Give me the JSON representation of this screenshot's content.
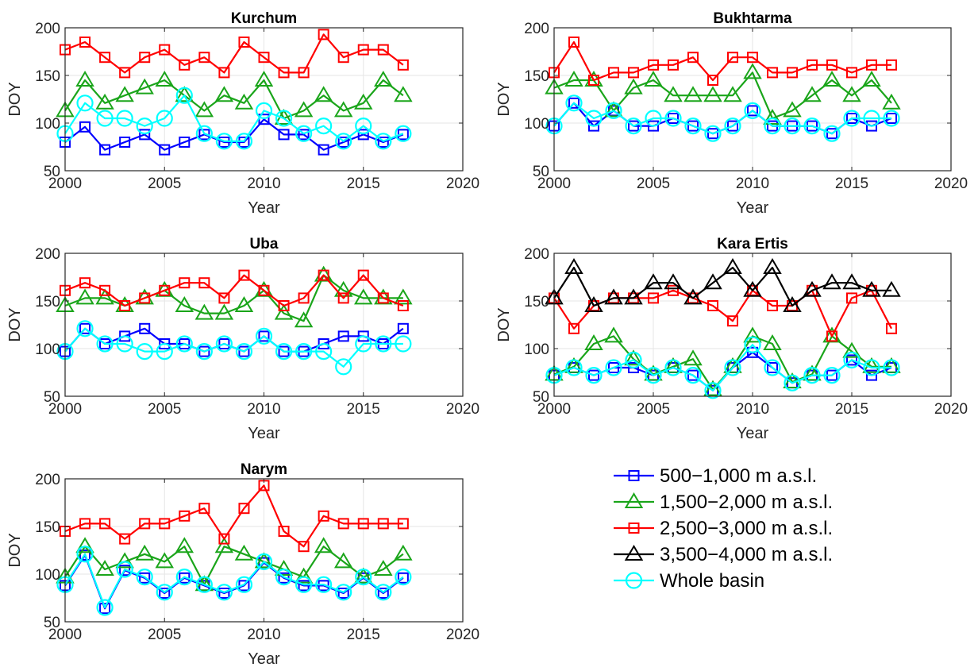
{
  "legend": [
    {
      "label": "500−1,000 m a.s.l.",
      "color": "#0000ff",
      "marker": "square"
    },
    {
      "label": "1,500−2,000 m a.s.l.",
      "color": "#1aa51a",
      "marker": "triangle"
    },
    {
      "label": "2,500−3,000 m a.s.l.",
      "color": "#ff0000",
      "marker": "square"
    },
    {
      "label": "3,500−4,000 m a.s.l.",
      "color": "#000000",
      "marker": "triangle"
    },
    {
      "label": "Whole basin",
      "color": "#00ffff",
      "marker": "circle"
    }
  ],
  "chart_data": [
    {
      "type": "line",
      "title": "Kurchum",
      "xlabel": "Year",
      "ylabel": "DOY",
      "xlim": [
        2000,
        2020
      ],
      "ylim": [
        50,
        200
      ],
      "xticks": [
        2000,
        2005,
        2010,
        2015,
        2020
      ],
      "yticks": [
        50,
        100,
        150,
        200
      ],
      "grid": true,
      "x": [
        2000,
        2001,
        2002,
        2003,
        2004,
        2005,
        2006,
        2007,
        2008,
        2009,
        2010,
        2011,
        2012,
        2013,
        2014,
        2015,
        2016,
        2017
      ],
      "series": [
        {
          "name": "500−1,000 m a.s.l.",
          "values": [
            80,
            96,
            72,
            80,
            88,
            72,
            80,
            88,
            80,
            80,
            104,
            88,
            88,
            72,
            80,
            88,
            80,
            88
          ]
        },
        {
          "name": "1,500−2,000 m a.s.l.",
          "values": [
            113,
            145,
            121,
            129,
            137,
            145,
            129,
            113,
            129,
            121,
            145,
            105,
            113,
            129,
            113,
            121,
            145,
            129
          ]
        },
        {
          "name": "2,500−3,000 m a.s.l.",
          "values": [
            177,
            185,
            169,
            153,
            169,
            177,
            161,
            169,
            153,
            185,
            169,
            153,
            153,
            193,
            169,
            177,
            177,
            161
          ]
        },
        {
          "name": "Whole basin",
          "values": [
            89,
            121,
            105,
            105,
            97,
            105,
            129,
            89,
            81,
            81,
            113,
            105,
            89,
            97,
            81,
            97,
            81,
            89
          ]
        }
      ]
    },
    {
      "type": "line",
      "title": "Bukhtarma",
      "xlabel": "Year",
      "ylabel": "DOY",
      "xlim": [
        2000,
        2020
      ],
      "ylim": [
        50,
        200
      ],
      "xticks": [
        2000,
        2005,
        2010,
        2015,
        2020
      ],
      "yticks": [
        50,
        100,
        150,
        200
      ],
      "grid": true,
      "x": [
        2000,
        2001,
        2002,
        2003,
        2004,
        2005,
        2006,
        2007,
        2008,
        2009,
        2010,
        2011,
        2012,
        2013,
        2014,
        2015,
        2016,
        2017
      ],
      "series": [
        {
          "name": "500−1,000 m a.s.l.",
          "values": [
            97,
            121,
            97,
            113,
            97,
            97,
            105,
            97,
            89,
            97,
            113,
            97,
            97,
            97,
            89,
            105,
            97,
            105
          ]
        },
        {
          "name": "1,500−2,000 m a.s.l.",
          "values": [
            137,
            145,
            145,
            113,
            137,
            145,
            129,
            129,
            129,
            129,
            153,
            105,
            113,
            129,
            145,
            129,
            145,
            121
          ]
        },
        {
          "name": "2,500−3,000 m a.s.l.",
          "values": [
            153,
            185,
            145,
            153,
            153,
            161,
            161,
            169,
            145,
            169,
            169,
            153,
            153,
            161,
            161,
            153,
            161,
            161
          ]
        },
        {
          "name": "Whole basin",
          "values": [
            97,
            121,
            105,
            113,
            97,
            105,
            105,
            97,
            89,
            97,
            113,
            97,
            97,
            97,
            89,
            105,
            105,
            105
          ]
        }
      ]
    },
    {
      "type": "line",
      "title": "Uba",
      "xlabel": "Year",
      "ylabel": "DOY",
      "xlim": [
        2000,
        2020
      ],
      "ylim": [
        50,
        200
      ],
      "xticks": [
        2000,
        2005,
        2010,
        2015,
        2020
      ],
      "yticks": [
        50,
        100,
        150,
        200
      ],
      "grid": true,
      "x": [
        2000,
        2001,
        2002,
        2003,
        2004,
        2005,
        2006,
        2007,
        2008,
        2009,
        2010,
        2011,
        2012,
        2013,
        2014,
        2015,
        2016,
        2017
      ],
      "series": [
        {
          "name": "500−1,000 m a.s.l.",
          "values": [
            97,
            121,
            105,
            113,
            121,
            105,
            105,
            97,
            105,
            97,
            113,
            97,
            97,
            105,
            113,
            113,
            105,
            121
          ]
        },
        {
          "name": "1,500−2,000 m a.s.l.",
          "values": [
            145,
            153,
            153,
            145,
            153,
            161,
            145,
            137,
            137,
            145,
            161,
            137,
            129,
            177,
            161,
            153,
            153,
            153
          ]
        },
        {
          "name": "2,500−3,000 m a.s.l.",
          "values": [
            161,
            169,
            161,
            145,
            153,
            161,
            169,
            169,
            153,
            177,
            161,
            145,
            153,
            177,
            153,
            177,
            153,
            145
          ]
        },
        {
          "name": "Whole basin",
          "values": [
            97,
            121,
            105,
            105,
            97,
            97,
            105,
            97,
            105,
            97,
            113,
            97,
            97,
            97,
            81,
            105,
            105,
            105
          ]
        }
      ]
    },
    {
      "type": "line",
      "title": "Kara Ertis",
      "xlabel": "Year",
      "ylabel": "DOY",
      "xlim": [
        2000,
        2020
      ],
      "ylim": [
        50,
        200
      ],
      "xticks": [
        2000,
        2005,
        2010,
        2015,
        2020
      ],
      "yticks": [
        50,
        100,
        150,
        200
      ],
      "grid": true,
      "x": [
        2000,
        2001,
        2002,
        2003,
        2004,
        2005,
        2006,
        2007,
        2008,
        2009,
        2010,
        2011,
        2012,
        2013,
        2014,
        2015,
        2016,
        2017
      ],
      "series": [
        {
          "name": "500−1,000 m a.s.l.",
          "values": [
            72,
            80,
            72,
            80,
            80,
            72,
            80,
            72,
            56,
            80,
            96,
            80,
            64,
            72,
            72,
            88,
            72,
            80
          ]
        },
        {
          "name": "1,500−2,000 m a.s.l.",
          "values": [
            73,
            81,
            105,
            113,
            89,
            73,
            81,
            89,
            57,
            81,
            113,
            105,
            65,
            73,
            113,
            97,
            81,
            81
          ]
        },
        {
          "name": "2,500−3,000 m a.s.l.",
          "values": [
            153,
            121,
            145,
            153,
            153,
            153,
            161,
            153,
            145,
            129,
            161,
            145,
            145,
            161,
            113,
            153,
            161,
            121
          ]
        },
        {
          "name": "3,500−4,000 m a.s.l.",
          "values": [
            153,
            185,
            145,
            153,
            153,
            169,
            169,
            153,
            169,
            185,
            161,
            185,
            145,
            161,
            169,
            169,
            161,
            161
          ]
        },
        {
          "name": "Whole basin",
          "values": [
            72,
            80,
            72,
            80,
            88,
            72,
            80,
            72,
            56,
            80,
            104,
            80,
            64,
            72,
            72,
            88,
            80,
            80
          ]
        }
      ]
    },
    {
      "type": "line",
      "title": "Narym",
      "xlabel": "Year",
      "ylabel": "DOY",
      "xlim": [
        2000,
        2020
      ],
      "ylim": [
        50,
        200
      ],
      "xticks": [
        2000,
        2005,
        2010,
        2015,
        2020
      ],
      "yticks": [
        50,
        100,
        150,
        200
      ],
      "grid": true,
      "x": [
        2000,
        2001,
        2002,
        2003,
        2004,
        2005,
        2006,
        2007,
        2008,
        2009,
        2010,
        2011,
        2012,
        2013,
        2014,
        2015,
        2016,
        2017
      ],
      "series": [
        {
          "name": "500−1,000 m a.s.l.",
          "values": [
            88,
            120,
            64,
            104,
            96,
            80,
            96,
            88,
            80,
            88,
            112,
            96,
            88,
            88,
            80,
            96,
            80,
            96
          ]
        },
        {
          "name": "1,500−2,000 m a.s.l.",
          "values": [
            97,
            129,
            105,
            113,
            121,
            113,
            129,
            89,
            129,
            121,
            113,
            105,
            97,
            129,
            113,
            97,
            105,
            121
          ]
        },
        {
          "name": "2,500−3,000 m a.s.l.",
          "values": [
            145,
            153,
            153,
            137,
            153,
            153,
            161,
            169,
            137,
            169,
            193,
            145,
            129,
            161,
            153,
            153,
            153,
            153
          ]
        },
        {
          "name": "Whole basin",
          "values": [
            89,
            121,
            65,
            105,
            97,
            81,
            97,
            89,
            81,
            89,
            113,
            97,
            89,
            89,
            81,
            97,
            81,
            97
          ]
        }
      ]
    }
  ]
}
